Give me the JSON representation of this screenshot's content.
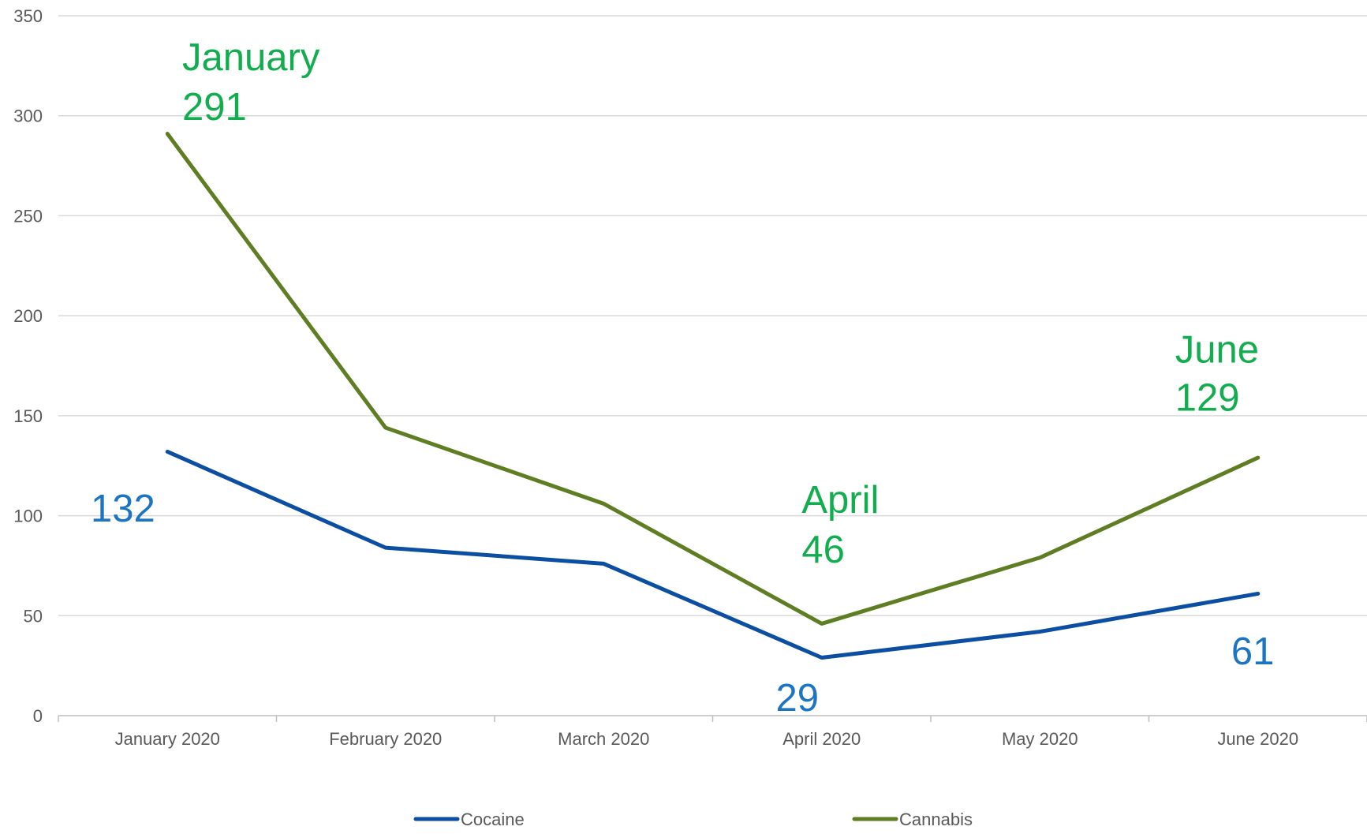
{
  "chart_data": {
    "type": "line",
    "categories": [
      "January 2020",
      "February 2020",
      "March 2020",
      "April 2020",
      "May 2020",
      "June 2020"
    ],
    "series": [
      {
        "name": "Cocaine",
        "color": "#0b4ea2",
        "label_color": "#1b75c2",
        "values": [
          132,
          84,
          76,
          29,
          42,
          61
        ],
        "value_labels": [
          "132",
          null,
          null,
          "29",
          null,
          "61"
        ]
      },
      {
        "name": "Cannabis",
        "color": "#5f7d22",
        "label_color": "#12ad4f",
        "values": [
          291,
          144,
          106,
          46,
          79,
          129
        ],
        "value_labels": [
          "291",
          null,
          null,
          "46",
          null,
          "129"
        ],
        "point_labels": [
          "January",
          null,
          null,
          "April",
          null,
          "June"
        ]
      }
    ],
    "ylim": [
      0,
      350
    ],
    "yticks": [
      0,
      50,
      100,
      150,
      200,
      250,
      300,
      350
    ],
    "grid": true,
    "legend": "bottom"
  }
}
